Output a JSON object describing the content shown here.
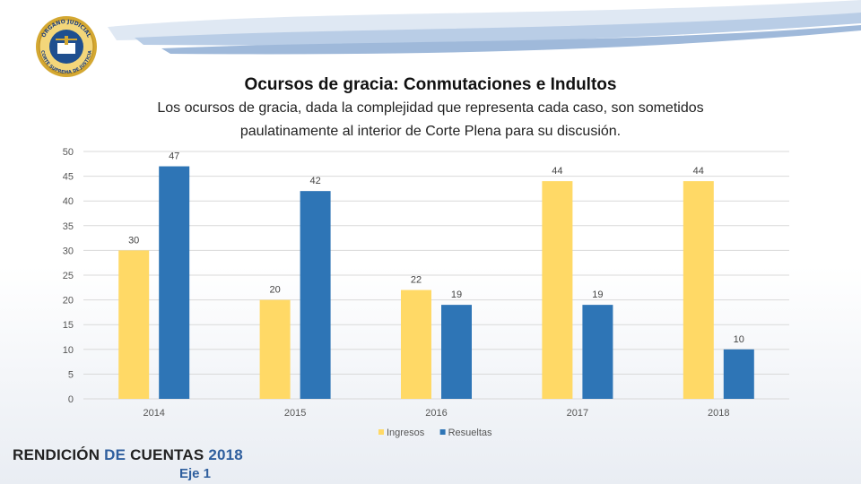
{
  "header": {
    "logo_top_text": "ÓRGANO JUDICIAL",
    "logo_bottom_text": "CORTE SUPREMA DE JUSTICIA"
  },
  "chart_data": {
    "type": "bar",
    "title": "Ocursos de gracia: Conmutaciones e Indultos",
    "subtitle": "Los ocursos de gracia, dada la complejidad que representa cada caso, son sometidos paulatinamente al interior de Corte Plena para su discusión.",
    "categories": [
      "2014",
      "2015",
      "2016",
      "2017",
      "2018"
    ],
    "series": [
      {
        "name": "Ingresos",
        "color": "#ffd966",
        "values": [
          30,
          20,
          22,
          44,
          44
        ]
      },
      {
        "name": "Resueltas",
        "color": "#2e75b6",
        "values": [
          47,
          42,
          19,
          19,
          10
        ]
      }
    ],
    "ylim": [
      0,
      50
    ],
    "yticks": [
      "0",
      "5",
      "10",
      "15",
      "20",
      "25",
      "30",
      "35",
      "40",
      "45",
      "50"
    ],
    "grid": true,
    "legend": "bottom",
    "xlabel": "",
    "ylabel": ""
  },
  "footer": {
    "brand_part1": "RENDICIÓN ",
    "brand_part2": "DE ",
    "brand_part3": "CUENTAS ",
    "brand_part4": "2018",
    "axis_label": "Eje 1"
  }
}
